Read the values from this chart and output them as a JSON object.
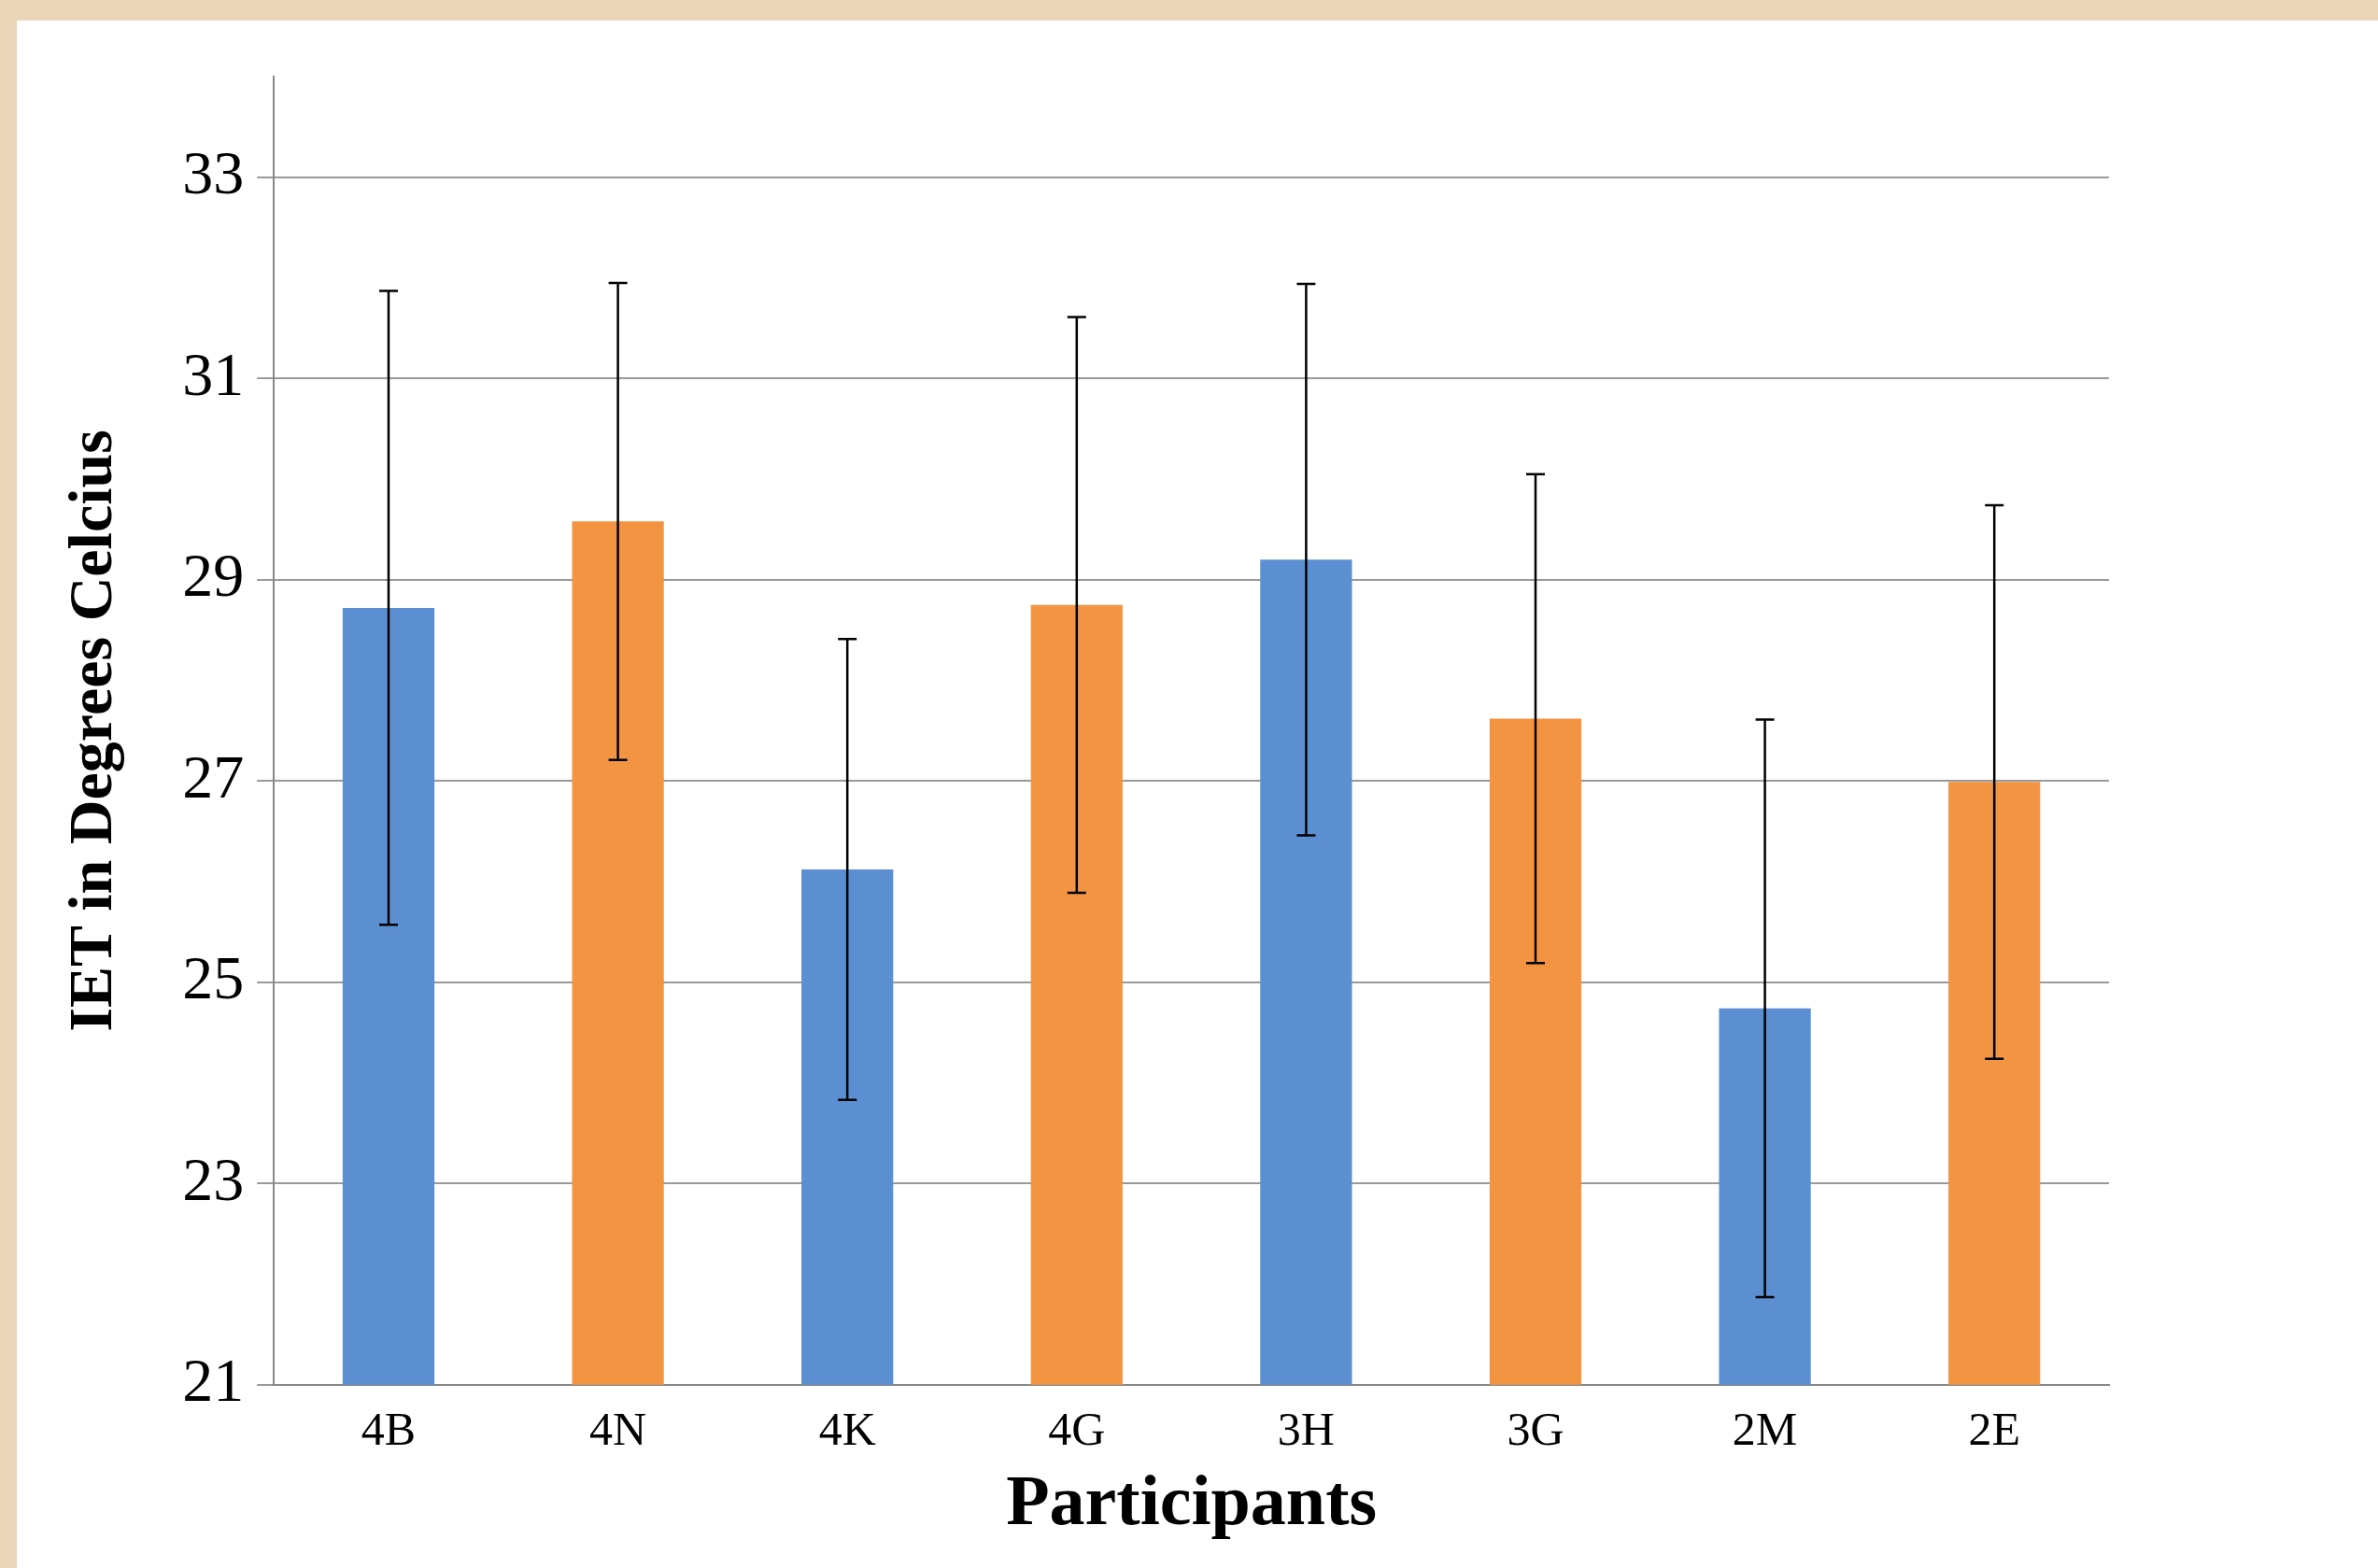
{
  "chart_data": {
    "type": "bar",
    "xlabel": "Participants",
    "ylabel": "IET in Degrees Celcius",
    "categories": [
      "4B",
      "4N",
      "4K",
      "4G",
      "3H",
      "3G",
      "2M",
      "2E"
    ],
    "values": [
      28.72,
      29.58,
      26.12,
      28.75,
      29.2,
      27.62,
      24.74,
      26.99
    ],
    "errors": [
      3.15,
      2.37,
      2.29,
      2.86,
      2.74,
      2.43,
      2.87,
      2.75
    ],
    "colors": [
      "#5b8fd1",
      "#f39443",
      "#5b8fd1",
      "#f39443",
      "#5b8fd1",
      "#f39443",
      "#5b8fd1",
      "#f39443"
    ],
    "ylim": [
      21,
      34
    ],
    "yticks": [
      21,
      23,
      25,
      27,
      29,
      31,
      33
    ],
    "grid": "y"
  }
}
